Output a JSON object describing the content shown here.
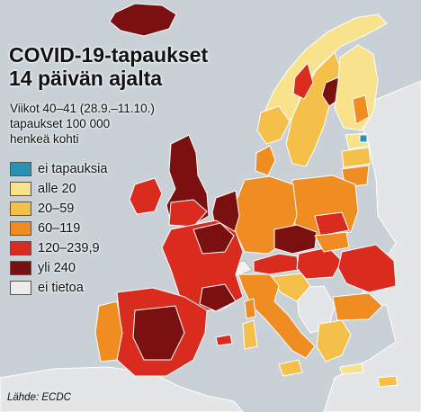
{
  "title_line1": "COVID-19-tapaukset",
  "title_line2": "14 päivän ajalta",
  "subtitle_line1": "Viikot 40–41 (28.9.–11.10.)",
  "subtitle_line2": "tapaukset 100 000",
  "subtitle_line3": "henkeä kohti",
  "legend": [
    {
      "label": "ei tapauksia",
      "color": "#2a92b4"
    },
    {
      "label": "alle 20",
      "color": "#f8e28c"
    },
    {
      "label": "20–59",
      "color": "#f5c04a"
    },
    {
      "label": "60–119",
      "color": "#ef8c22"
    },
    {
      "label": "120–239,9",
      "color": "#d92b1e"
    },
    {
      "label": "yli 240",
      "color": "#7a1010"
    },
    {
      "label": "ei tietoa",
      "color": "#ececec"
    }
  ],
  "source": "Lähde: ECDC",
  "colors": {
    "sea": "#c9d1d6",
    "non_eu_land": "#e4e5e6",
    "border": "#ffffff"
  }
}
